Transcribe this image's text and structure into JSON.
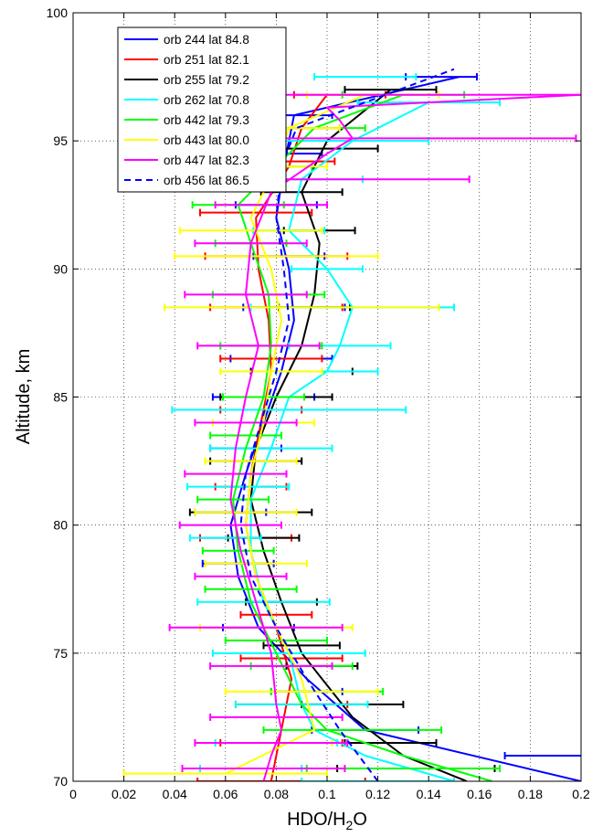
{
  "chart_data": {
    "type": "line",
    "title": "",
    "xlabel": "HDO/H",
    "xlabel_subscript": "2",
    "xlabel_suffix": "O",
    "ylabel": "Altitude, km",
    "xlim": [
      0,
      0.2
    ],
    "ylim": [
      70,
      100
    ],
    "x_ticks": [
      "0",
      "0.02",
      "0.04",
      "0.06",
      "0.08",
      "0.1",
      "0.12",
      "0.14",
      "0.16",
      "0.18",
      "0.2"
    ],
    "y_ticks": [
      "70",
      "75",
      "80",
      "85",
      "90",
      "95",
      "100"
    ],
    "grid": "dotted",
    "legend_position": "top-left",
    "series": [
      {
        "name": "orb 244 lat 84.8",
        "color": "#0000ff",
        "dashed": false,
        "points": [
          [
            0.2,
            70
          ],
          [
            0.115,
            72
          ],
          [
            0.092,
            74
          ],
          [
            0.073,
            76
          ],
          [
            0.065,
            78
          ],
          [
            0.062,
            80
          ],
          [
            0.068,
            82
          ],
          [
            0.075,
            84
          ],
          [
            0.082,
            86
          ],
          [
            0.087,
            88
          ],
          [
            0.085,
            90
          ],
          [
            0.08,
            92
          ],
          [
            0.083,
            94
          ],
          [
            0.087,
            96
          ],
          [
            0.152,
            97.5
          ]
        ],
        "errors": [
          [
            0.2,
            71,
            0.03
          ],
          [
            0.115,
            72,
            0.021
          ],
          [
            0.092,
            73.5,
            0.014
          ],
          [
            0.073,
            76,
            0.014
          ],
          [
            0.065,
            78.5,
            0.014
          ],
          [
            0.062,
            80.5,
            0.014
          ],
          [
            0.068,
            83,
            0.014
          ],
          [
            0.075,
            85,
            0.02
          ],
          [
            0.082,
            86.5,
            0.02
          ],
          [
            0.087,
            88.5,
            0.02
          ],
          [
            0.085,
            90.5,
            0.014
          ],
          [
            0.08,
            92.5,
            0.016
          ],
          [
            0.083,
            94.5,
            0.015
          ],
          [
            0.087,
            96,
            0.015
          ],
          [
            0.145,
            97.5,
            0.014
          ]
        ]
      },
      {
        "name": "orb 251 lat 82.1",
        "color": "#ff0000",
        "dashed": false,
        "points": [
          [
            0.078,
            70
          ],
          [
            0.082,
            72
          ],
          [
            0.086,
            74
          ],
          [
            0.08,
            76
          ],
          [
            0.072,
            78
          ],
          [
            0.068,
            80
          ],
          [
            0.07,
            82
          ],
          [
            0.074,
            84
          ],
          [
            0.078,
            86
          ],
          [
            0.077,
            88
          ],
          [
            0.073,
            90
          ],
          [
            0.072,
            92
          ],
          [
            0.085,
            94
          ],
          [
            0.09,
            95.5
          ],
          [
            0.1,
            96.8
          ]
        ],
        "errors": [
          [
            0.082,
            70,
            0.033
          ],
          [
            0.082,
            71.5,
            0.024
          ],
          [
            0.086,
            73,
            0.022
          ],
          [
            0.086,
            74.8,
            0.02
          ],
          [
            0.08,
            76.5,
            0.014
          ],
          [
            0.068,
            79.5,
            0.018
          ],
          [
            0.07,
            81.5,
            0.014
          ],
          [
            0.074,
            84.5,
            0.016
          ],
          [
            0.078,
            86.5,
            0.02
          ],
          [
            0.08,
            88.5,
            0.026
          ],
          [
            0.08,
            90.5,
            0.028
          ],
          [
            0.072,
            92.2,
            0.022
          ],
          [
            0.085,
            94.2,
            0.018
          ],
          [
            0.09,
            95.5,
            0.015
          ],
          [
            0.105,
            96.8,
            0.018
          ]
        ]
      },
      {
        "name": "orb 255 lat 79.2",
        "color": "#000000",
        "dashed": false,
        "points": [
          [
            0.155,
            70
          ],
          [
            0.13,
            71
          ],
          [
            0.11,
            72.5
          ],
          [
            0.098,
            74
          ],
          [
            0.09,
            75
          ],
          [
            0.082,
            77
          ],
          [
            0.075,
            79
          ],
          [
            0.07,
            81
          ],
          [
            0.072,
            83
          ],
          [
            0.08,
            85
          ],
          [
            0.09,
            87
          ],
          [
            0.095,
            89
          ],
          [
            0.097,
            91
          ],
          [
            0.09,
            93
          ],
          [
            0.1,
            95
          ],
          [
            0.125,
            97
          ]
        ],
        "errors": [
          [
            0.135,
            70.5,
            0.031
          ],
          [
            0.125,
            71.5,
            0.018
          ],
          [
            0.11,
            73,
            0.02
          ],
          [
            0.098,
            74.5,
            0.014
          ],
          [
            0.09,
            75.3,
            0.015
          ],
          [
            0.082,
            77,
            0.014
          ],
          [
            0.075,
            79.5,
            0.014
          ],
          [
            0.07,
            80.5,
            0.024
          ],
          [
            0.072,
            82.5,
            0.018
          ],
          [
            0.08,
            85,
            0.022
          ],
          [
            0.09,
            86,
            0.02
          ],
          [
            0.095,
            88.5,
            0.014
          ],
          [
            0.097,
            91.5,
            0.014
          ],
          [
            0.09,
            93,
            0.016
          ],
          [
            0.1,
            94.7,
            0.02
          ],
          [
            0.125,
            97,
            0.018
          ]
        ]
      },
      {
        "name": "orb 262 lat 70.8",
        "color": "#00ffff",
        "dashed": false,
        "points": [
          [
            0.15,
            70
          ],
          [
            0.115,
            71
          ],
          [
            0.095,
            72
          ],
          [
            0.09,
            73
          ],
          [
            0.085,
            75
          ],
          [
            0.075,
            77
          ],
          [
            0.07,
            79
          ],
          [
            0.07,
            81
          ],
          [
            0.078,
            83
          ],
          [
            0.085,
            85
          ],
          [
            0.1,
            86
          ],
          [
            0.105,
            87
          ],
          [
            0.11,
            88.5
          ],
          [
            0.1,
            90
          ],
          [
            0.085,
            91.5
          ],
          [
            0.09,
            93.5
          ],
          [
            0.11,
            95
          ],
          [
            0.14,
            96.5
          ]
        ],
        "errors": [
          [
            0.12,
            70,
            0.03
          ],
          [
            0.07,
            70.5,
            0.02
          ],
          [
            0.08,
            71.5,
            0.024
          ],
          [
            0.09,
            73,
            0.026
          ],
          [
            0.085,
            75,
            0.03
          ],
          [
            0.075,
            77,
            0.026
          ],
          [
            0.06,
            79.5,
            0.014
          ],
          [
            0.065,
            81.5,
            0.02
          ],
          [
            0.078,
            83,
            0.024
          ],
          [
            0.085,
            84.5,
            0.046
          ],
          [
            0.1,
            86,
            0.02
          ],
          [
            0.105,
            87,
            0.02
          ],
          [
            0.11,
            88.5,
            0.04
          ],
          [
            0.1,
            90,
            0.014
          ],
          [
            0.085,
            91.5,
            0.014
          ],
          [
            0.09,
            93.5,
            0.024
          ],
          [
            0.11,
            95,
            0.03
          ],
          [
            0.14,
            96.5,
            0.028
          ],
          [
            0.115,
            97.5,
            0.02
          ]
        ]
      },
      {
        "name": "orb 442 lat 79.3",
        "color": "#00ff00",
        "dashed": false,
        "points": [
          [
            0.165,
            70
          ],
          [
            0.13,
            71
          ],
          [
            0.1,
            72
          ],
          [
            0.09,
            73
          ],
          [
            0.08,
            75
          ],
          [
            0.07,
            77
          ],
          [
            0.065,
            79
          ],
          [
            0.063,
            81
          ],
          [
            0.068,
            83
          ],
          [
            0.075,
            85
          ],
          [
            0.078,
            87
          ],
          [
            0.077,
            89
          ],
          [
            0.07,
            91
          ],
          [
            0.065,
            92.5
          ],
          [
            0.08,
            94
          ],
          [
            0.095,
            95.5
          ],
          [
            0.13,
            96.8
          ]
        ],
        "errors": [
          [
            0.13,
            70.5,
            0.038
          ],
          [
            0.11,
            72,
            0.035
          ],
          [
            0.1,
            73.5,
            0.022
          ],
          [
            0.09,
            74.5,
            0.02
          ],
          [
            0.08,
            75.5,
            0.02
          ],
          [
            0.07,
            77.5,
            0.018
          ],
          [
            0.065,
            79,
            0.014
          ],
          [
            0.063,
            81,
            0.014
          ],
          [
            0.068,
            83.5,
            0.014
          ],
          [
            0.075,
            85,
            0.016
          ],
          [
            0.078,
            87,
            0.02
          ],
          [
            0.077,
            89,
            0.022
          ],
          [
            0.07,
            91,
            0.014
          ],
          [
            0.065,
            92.5,
            0.018
          ],
          [
            0.08,
            94,
            0.014
          ],
          [
            0.095,
            95.5,
            0.02
          ],
          [
            0.13,
            96.8,
            0.024
          ]
        ]
      },
      {
        "name": "orb 443 lat 80.0",
        "color": "#ffff00",
        "dashed": false,
        "points": [
          [
            0.06,
            70.3
          ],
          [
            0.095,
            72
          ],
          [
            0.09,
            74
          ],
          [
            0.08,
            76
          ],
          [
            0.072,
            78
          ],
          [
            0.068,
            80
          ],
          [
            0.07,
            82
          ],
          [
            0.075,
            84
          ],
          [
            0.078,
            86
          ],
          [
            0.082,
            88
          ],
          [
            0.078,
            90
          ],
          [
            0.07,
            92
          ],
          [
            0.08,
            94
          ],
          [
            0.085,
            95.5
          ],
          [
            0.115,
            96.8
          ]
        ],
        "errors": [
          [
            0.06,
            70.3,
            0.04
          ],
          [
            0.075,
            71.5,
            0.027
          ],
          [
            0.09,
            73.5,
            0.03
          ],
          [
            0.08,
            76,
            0.03
          ],
          [
            0.072,
            78.5,
            0.02
          ],
          [
            0.068,
            80.5,
            0.02
          ],
          [
            0.07,
            82.5,
            0.018
          ],
          [
            0.075,
            84,
            0.02
          ],
          [
            0.078,
            86,
            0.02
          ],
          [
            0.09,
            88.5,
            0.054
          ],
          [
            0.08,
            90.5,
            0.04
          ],
          [
            0.07,
            91.5,
            0.028
          ],
          [
            0.08,
            94,
            0.02
          ],
          [
            0.085,
            95.5,
            0.02
          ],
          [
            0.118,
            96.8,
            0.026
          ]
        ]
      },
      {
        "name": "orb 447 lat 82.3",
        "color": "#ff00ff",
        "dashed": false,
        "points": [
          [
            0.075,
            70
          ],
          [
            0.078,
            71
          ],
          [
            0.082,
            72
          ],
          [
            0.08,
            73
          ],
          [
            0.078,
            75
          ],
          [
            0.072,
            77
          ],
          [
            0.066,
            79
          ],
          [
            0.062,
            81
          ],
          [
            0.064,
            83
          ],
          [
            0.068,
            85
          ],
          [
            0.073,
            87
          ],
          [
            0.068,
            89
          ],
          [
            0.07,
            91
          ],
          [
            0.078,
            93
          ],
          [
            0.1,
            94.5
          ],
          [
            0.11,
            95.1
          ],
          [
            0.105,
            95.8
          ],
          [
            0.1,
            96.3
          ],
          [
            0.2,
            96.8
          ]
        ],
        "errors": [
          [
            0.075,
            70.5,
            0.032
          ],
          [
            0.078,
            71.5,
            0.03
          ],
          [
            0.08,
            72.5,
            0.026
          ],
          [
            0.078,
            74.5,
            0.024
          ],
          [
            0.072,
            76,
            0.034
          ],
          [
            0.066,
            78,
            0.018
          ],
          [
            0.062,
            80,
            0.02
          ],
          [
            0.064,
            82,
            0.02
          ],
          [
            0.068,
            84,
            0.02
          ],
          [
            0.073,
            87,
            0.024
          ],
          [
            0.068,
            89,
            0.024
          ],
          [
            0.07,
            91,
            0.022
          ],
          [
            0.078,
            92.5,
            0.022
          ],
          [
            0.1,
            93.5,
            0.056
          ],
          [
            0.11,
            95.1,
            0.088
          ],
          [
            0.135,
            96.8,
            0.07
          ]
        ]
      },
      {
        "name": "orb 456 lat 86.5",
        "color": "#0000ff",
        "dashed": true,
        "points": [
          [
            0.12,
            70
          ],
          [
            0.105,
            72
          ],
          [
            0.092,
            74
          ],
          [
            0.08,
            76
          ],
          [
            0.07,
            78
          ],
          [
            0.066,
            80
          ],
          [
            0.068,
            82
          ],
          [
            0.074,
            84
          ],
          [
            0.08,
            86
          ],
          [
            0.085,
            88
          ],
          [
            0.083,
            90
          ],
          [
            0.08,
            92
          ],
          [
            0.082,
            94
          ],
          [
            0.088,
            95.5
          ],
          [
            0.15,
            97.8
          ]
        ],
        "errors": []
      }
    ]
  }
}
